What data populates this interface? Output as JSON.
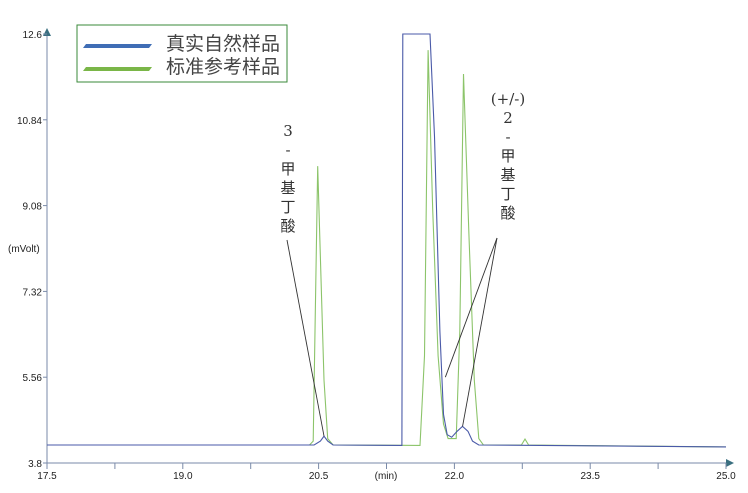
{
  "chart_data": {
    "type": "line",
    "xlabel": "(min)",
    "ylabel": "(mVolt)",
    "xlim": [
      17.5,
      25.0
    ],
    "ylim": [
      3.8,
      12.6
    ],
    "x_ticks": [
      "17.5",
      "19.0",
      "20.5",
      "22.0",
      "23.5",
      "25.0"
    ],
    "y_ticks": [
      "12.6",
      "10.84",
      "9.08",
      "7.32",
      "5.56",
      "3.8"
    ],
    "grid": false,
    "legend_placement": "top-left",
    "series": [
      {
        "name": "真实自然样品",
        "color": "#4a5aa8",
        "legend_color": "#3f6db5",
        "points": [
          [
            17.5,
            4.17
          ],
          [
            20.45,
            4.17
          ],
          [
            20.52,
            4.25
          ],
          [
            20.56,
            4.35
          ],
          [
            20.6,
            4.25
          ],
          [
            20.66,
            4.17
          ],
          [
            21.42,
            4.16
          ],
          [
            21.43,
            12.6
          ],
          [
            21.73,
            12.6
          ],
          [
            21.78,
            10.5
          ],
          [
            21.84,
            6.5
          ],
          [
            21.88,
            4.8
          ],
          [
            21.92,
            4.38
          ],
          [
            21.97,
            4.33
          ],
          [
            22.03,
            4.45
          ],
          [
            22.09,
            4.55
          ],
          [
            22.15,
            4.45
          ],
          [
            22.2,
            4.25
          ],
          [
            22.27,
            4.17
          ],
          [
            25.0,
            4.13
          ]
        ]
      },
      {
        "name": "标准参考样品",
        "color": "#8cc46a",
        "legend_color": "#7ab648",
        "points": [
          [
            17.5,
            4.17
          ],
          [
            20.4,
            4.17
          ],
          [
            20.44,
            4.25
          ],
          [
            20.49,
            9.89
          ],
          [
            20.56,
            5.5
          ],
          [
            20.6,
            4.3
          ],
          [
            20.66,
            4.17
          ],
          [
            21.62,
            4.16
          ],
          [
            21.67,
            6.0
          ],
          [
            21.71,
            12.27
          ],
          [
            21.76,
            9.0
          ],
          [
            21.82,
            6.0
          ],
          [
            21.88,
            4.6
          ],
          [
            21.93,
            4.3
          ],
          [
            22.02,
            4.3
          ],
          [
            22.06,
            6.5
          ],
          [
            22.1,
            11.78
          ],
          [
            22.16,
            8.5
          ],
          [
            22.22,
            5.5
          ],
          [
            22.27,
            4.3
          ],
          [
            22.32,
            4.17
          ],
          [
            22.74,
            4.17
          ],
          [
            22.78,
            4.29
          ],
          [
            22.82,
            4.17
          ],
          [
            25.0,
            4.13
          ]
        ]
      }
    ],
    "annotations": [
      {
        "lines": [
          "3",
          "-",
          "甲",
          "基",
          "丁",
          "酸"
        ],
        "targets": [
          [
            20.56,
            4.35
          ]
        ]
      },
      {
        "lines": [
          "(+/-)",
          "2",
          "-",
          "甲",
          "基",
          "丁",
          "酸"
        ],
        "targets": [
          [
            21.9,
            5.56
          ],
          [
            22.09,
            4.55
          ]
        ]
      }
    ]
  }
}
